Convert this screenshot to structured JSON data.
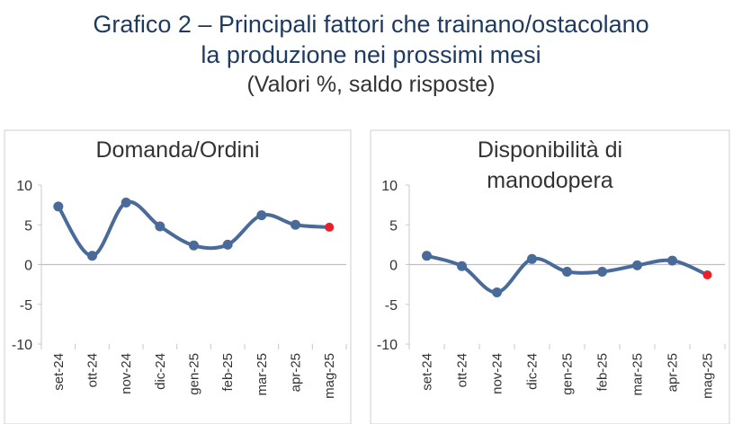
{
  "title": {
    "line1": "Grafico 2 – Principali fattori che trainano/ostacolano",
    "line2": "la produzione nei prossimi mesi",
    "subtitle": "(Valori %, saldo risposte)"
  },
  "colors": {
    "line": "#4a6b99",
    "last_point": "#e8202a",
    "title": "#1f3a5f"
  },
  "chart_data": [
    {
      "type": "line",
      "title_lines": [
        "Domanda/Ordini"
      ],
      "categories": [
        "set-24",
        "ott-24",
        "nov-24",
        "dic-24",
        "gen-25",
        "feb-25",
        "mar-25",
        "apr-25",
        "mag-25"
      ],
      "values": [
        7.3,
        1.1,
        7.8,
        4.8,
        2.4,
        2.5,
        6.2,
        5.0,
        4.7
      ],
      "yticks": [
        10,
        5,
        0,
        -5,
        -10
      ],
      "ylim": [
        -10,
        10
      ],
      "highlight_last": true
    },
    {
      "type": "line",
      "title_lines": [
        "Disponibilità di",
        "manodopera"
      ],
      "categories": [
        "set-24",
        "ott-24",
        "nov-24",
        "dic-24",
        "gen-25",
        "feb-25",
        "mar-25",
        "apr-25",
        "mag-25"
      ],
      "values": [
        1.1,
        -0.2,
        -3.5,
        0.7,
        -0.9,
        -0.9,
        -0.1,
        0.5,
        -1.3
      ],
      "yticks": [
        10,
        5,
        0,
        -5,
        -10
      ],
      "ylim": [
        -10,
        10
      ],
      "highlight_last": true
    }
  ]
}
